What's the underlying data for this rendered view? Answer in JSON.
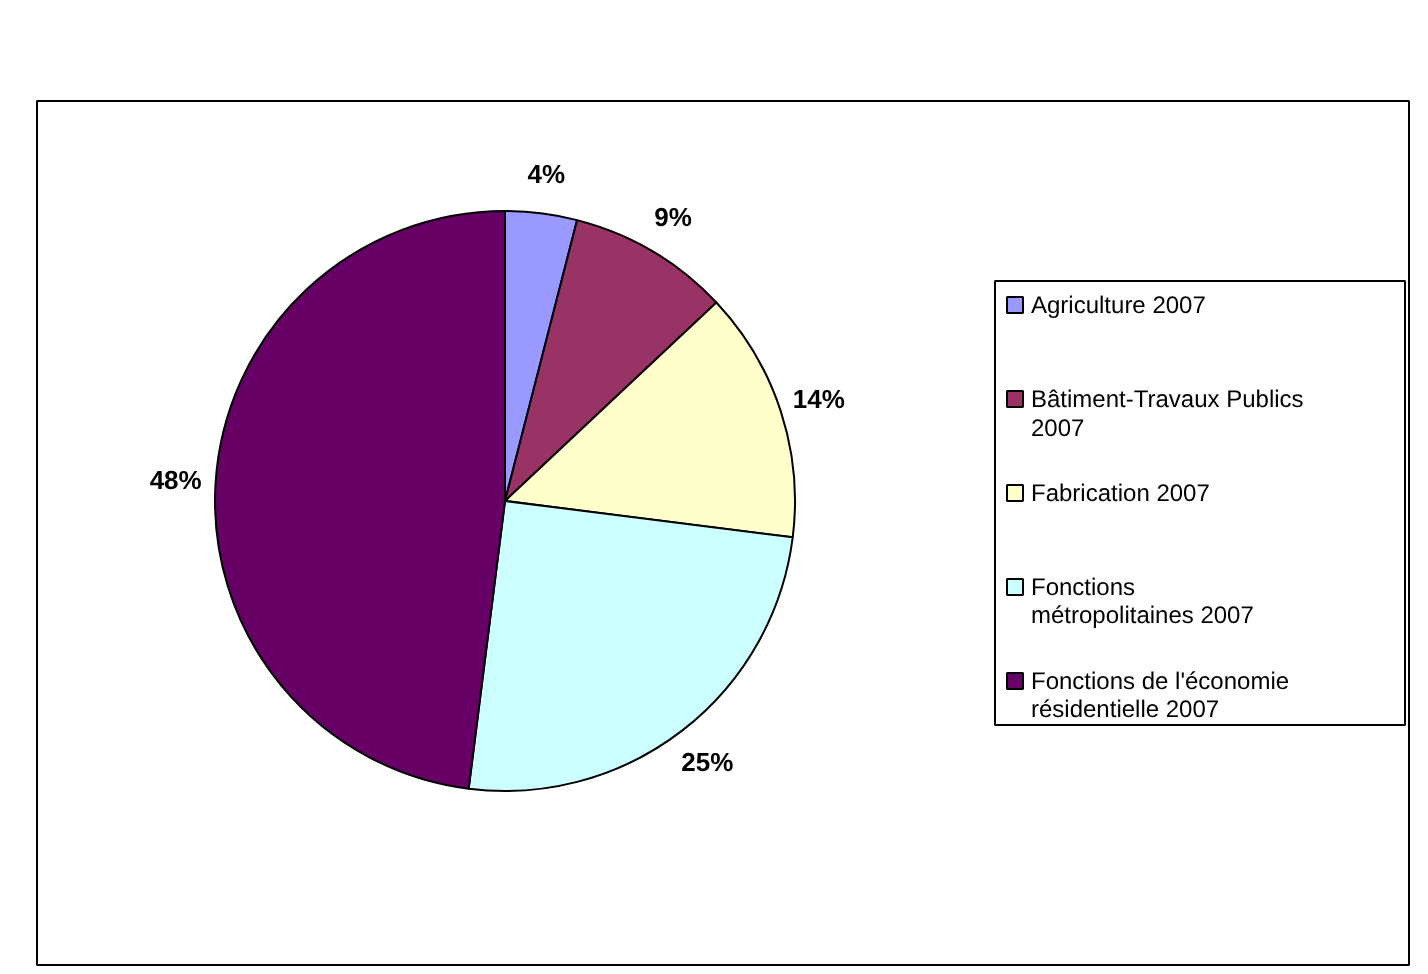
{
  "chart_data": {
    "type": "pie",
    "categories": [
      "Agriculture 2007",
      "Bâtiment-Travaux Publics 2007",
      "Fabrication 2007",
      "Fonctions métropolitaines 2007",
      "Fonctions de l'économie résidentielle 2007"
    ],
    "values": [
      4,
      9,
      14,
      25,
      48
    ],
    "colors": [
      "#9999ff",
      "#993366",
      "#ffffcc",
      "#ccffff",
      "#660066"
    ],
    "value_labels": [
      "4%",
      "9%",
      "14%",
      "25%",
      "48%"
    ],
    "legend": "right"
  }
}
